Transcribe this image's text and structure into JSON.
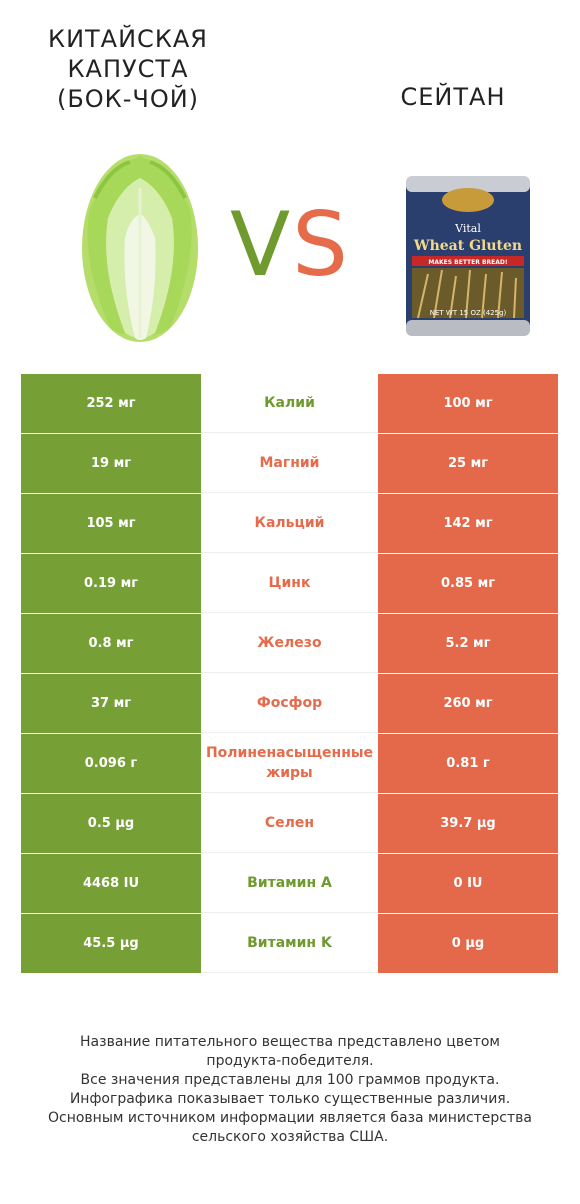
{
  "header": {
    "left_title": "КИТАЙСКАЯ\nКАПУСТА\n(БОК-ЧОЙ)",
    "right_title": "СЕЙТАН",
    "vs_v": "V",
    "vs_s": "S"
  },
  "images": {
    "right_label_top": "Vital",
    "right_label_main": "Wheat Gluten",
    "right_label_band": "MAKES BETTER BREAD!",
    "right_label_bottom": "NET WT 15 OZ (425g)"
  },
  "colors": {
    "left_accent": "#76a036",
    "right_accent": "#e4684a"
  },
  "rows": [
    {
      "left": "252 мг",
      "name": "Калий",
      "right": "100 мг",
      "winner": "left"
    },
    {
      "left": "19 мг",
      "name": "Магний",
      "right": "25 мг",
      "winner": "right"
    },
    {
      "left": "105 мг",
      "name": "Кальций",
      "right": "142 мг",
      "winner": "right"
    },
    {
      "left": "0.19 мг",
      "name": "Цинк",
      "right": "0.85 мг",
      "winner": "right"
    },
    {
      "left": "0.8 мг",
      "name": "Железо",
      "right": "5.2 мг",
      "winner": "right"
    },
    {
      "left": "37 мг",
      "name": "Фосфор",
      "right": "260 мг",
      "winner": "right"
    },
    {
      "left": "0.096 г",
      "name": "Полиненасыщенные жиры",
      "right": "0.81 г",
      "winner": "right"
    },
    {
      "left": "0.5 µg",
      "name": "Селен",
      "right": "39.7 µg",
      "winner": "right"
    },
    {
      "left": "4468 IU",
      "name": "Витамин A",
      "right": "0 IU",
      "winner": "left"
    },
    {
      "left": "45.5 µg",
      "name": "Витамин K",
      "right": "0 µg",
      "winner": "left"
    }
  ],
  "footer": {
    "line1": "Название питательного вещества представлено цветом",
    "line2": "продукта-победителя.",
    "line3": "Все значения представлены для 100 граммов продукта.",
    "line4": "Инфографика показывает только существенные различия.",
    "line5": "Основным источником информации является база министерства",
    "line6": "сельского хозяйства США."
  }
}
